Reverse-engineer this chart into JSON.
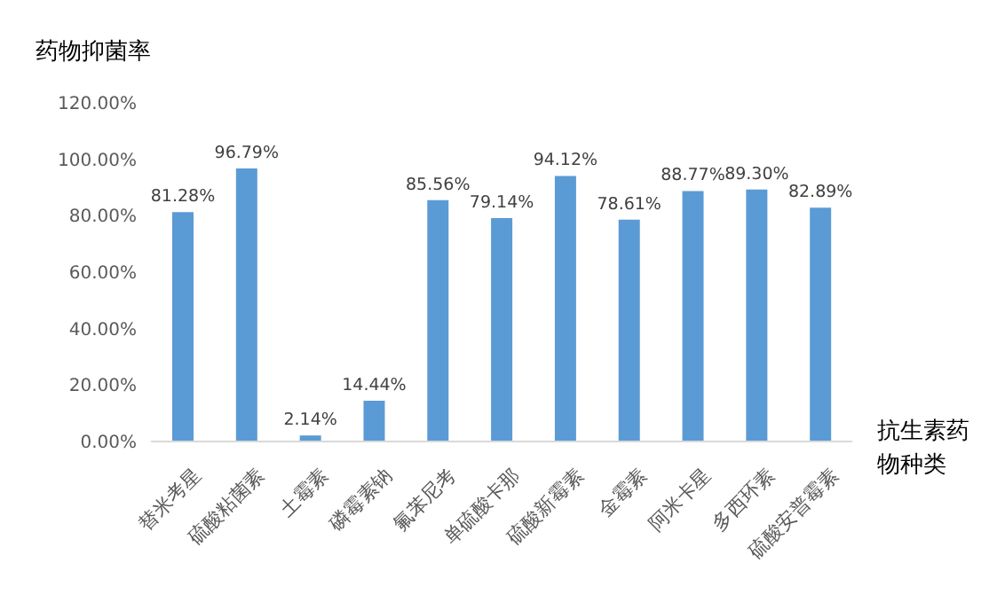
{
  "chart_data": {
    "type": "bar",
    "ylabel": "药物抑菌率",
    "xlabel": "抗生素药物种类",
    "categories": [
      "替米考星",
      "硫酸粘菌素",
      "土霉素",
      "磷霉素钠",
      "氟苯尼考",
      "单硫酸卡那",
      "硫酸新霉素",
      "金霉素",
      "阿米卡星",
      "多西环素",
      "硫酸安普霉素"
    ],
    "values": [
      81.28,
      96.79,
      2.14,
      14.44,
      85.56,
      79.14,
      94.12,
      78.61,
      88.77,
      89.3,
      82.89
    ],
    "value_labels": [
      "81.28%",
      "96.79%",
      "2.14%",
      "14.44%",
      "85.56%",
      "79.14%",
      "94.12%",
      "78.61%",
      "88.77%",
      "89.30%",
      "82.89%"
    ],
    "color": "#5b9bd5",
    "ylim": [
      0,
      120
    ],
    "yticks": [
      {
        "value": 0,
        "label": "0.00%"
      },
      {
        "value": 20,
        "label": "20.00%"
      },
      {
        "value": 40,
        "label": "40.00%"
      },
      {
        "value": 60,
        "label": "60.00%"
      },
      {
        "value": 80,
        "label": "80.00%"
      },
      {
        "value": 100,
        "label": "100.00%"
      },
      {
        "value": 120,
        "label": "120.00%"
      }
    ],
    "grid": false,
    "legend": false
  }
}
